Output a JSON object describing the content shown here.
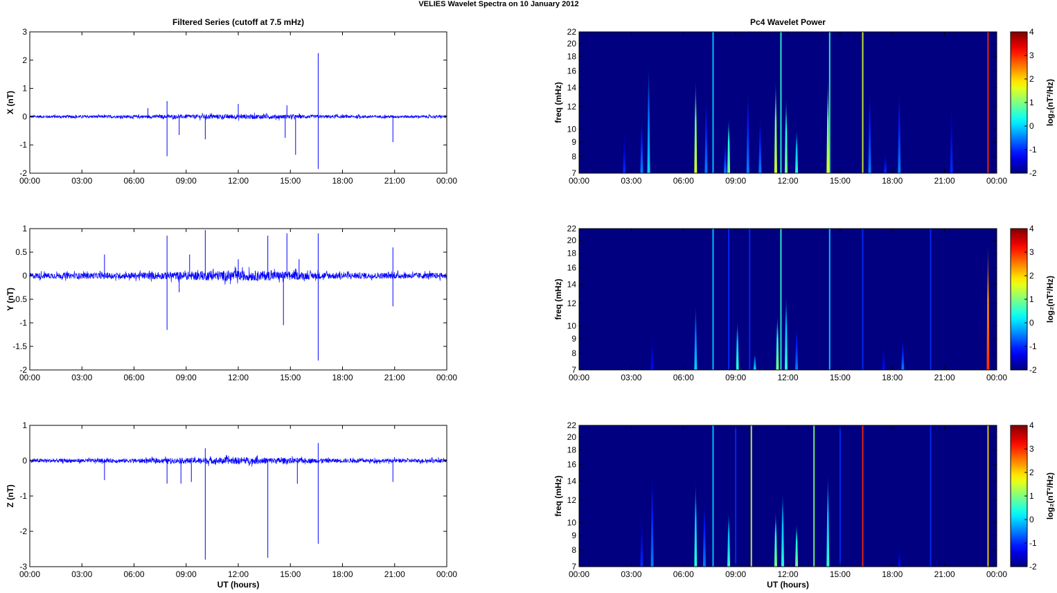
{
  "figure_title": "VELIES Wavelet Spectra on 10 January   2012",
  "chart_data": [
    {
      "type": "line",
      "panel": "timeseries-x",
      "title": "Filtered Series (cutoff at 7.5 mHz)",
      "ylabel": "X (nT)",
      "xlabel": "",
      "xlim": [
        0,
        24
      ],
      "ylim": [
        -2,
        3
      ],
      "yticks": [
        -2,
        -1,
        0,
        1,
        2,
        3
      ],
      "xtick_labels": [
        "00:00",
        "03:00",
        "06:00",
        "09:00",
        "12:00",
        "15:00",
        "18:00",
        "21:00",
        "00:00"
      ],
      "color": "#0000ff",
      "noise_amplitude": 0.07,
      "spikes": [
        [
          16.6,
          2.25
        ],
        [
          16.6,
          -1.85
        ],
        [
          7.9,
          -1.4
        ],
        [
          7.9,
          0.55
        ],
        [
          15.3,
          -1.35
        ],
        [
          14.7,
          -0.75
        ],
        [
          14.8,
          0.4
        ],
        [
          10.1,
          -0.8
        ],
        [
          8.6,
          -0.65
        ],
        [
          20.9,
          -0.9
        ],
        [
          24,
          1.15
        ],
        [
          24,
          -1.3
        ],
        [
          12,
          0.45
        ],
        [
          6.8,
          0.3
        ]
      ]
    },
    {
      "type": "line",
      "panel": "timeseries-y",
      "title": "",
      "ylabel": "Y (nT)",
      "xlabel": "",
      "xlim": [
        0,
        24
      ],
      "ylim": [
        -2,
        1
      ],
      "yticks": [
        -2,
        -1.5,
        -1,
        -0.5,
        0,
        0.5,
        1
      ],
      "xtick_labels": [
        "00:00",
        "03:00",
        "06:00",
        "09:00",
        "12:00",
        "15:00",
        "18:00",
        "21:00",
        "00:00"
      ],
      "color": "#0000ff",
      "noise_amplitude": 0.09,
      "spikes": [
        [
          16.6,
          -1.8
        ],
        [
          16.6,
          0.9
        ],
        [
          7.9,
          -1.15
        ],
        [
          7.9,
          0.85
        ],
        [
          14.8,
          0.9
        ],
        [
          14.6,
          -1.05
        ],
        [
          10.1,
          0.97
        ],
        [
          20.9,
          0.6
        ],
        [
          20.9,
          -0.65
        ],
        [
          4.3,
          0.45
        ],
        [
          13.7,
          0.85
        ],
        [
          24,
          0.8
        ],
        [
          24,
          -0.65
        ],
        [
          9.2,
          0.45
        ],
        [
          8.6,
          -0.35
        ],
        [
          12,
          0.35
        ],
        [
          15.5,
          0.35
        ]
      ]
    },
    {
      "type": "line",
      "panel": "timeseries-z",
      "title": "",
      "ylabel": "Z (nT)",
      "xlabel": "UT (hours)",
      "xlim": [
        0,
        24
      ],
      "ylim": [
        -3,
        1
      ],
      "yticks": [
        -3,
        -2,
        -1,
        0,
        1
      ],
      "xtick_labels": [
        "00:00",
        "03:00",
        "06:00",
        "09:00",
        "12:00",
        "15:00",
        "18:00",
        "21:00",
        "00:00"
      ],
      "color": "#0000ff",
      "noise_amplitude": 0.08,
      "spikes": [
        [
          10.1,
          -2.8
        ],
        [
          13.7,
          -2.75
        ],
        [
          16.6,
          -2.35
        ],
        [
          16.6,
          0.5
        ],
        [
          7.9,
          -0.65
        ],
        [
          8.7,
          -0.65
        ],
        [
          9.3,
          -0.6
        ],
        [
          4.3,
          -0.55
        ],
        [
          15.4,
          -0.65
        ],
        [
          20.9,
          -0.6
        ],
        [
          24,
          0.6
        ],
        [
          24,
          -0.75
        ],
        [
          10.1,
          0.35
        ]
      ]
    },
    {
      "type": "heatmap",
      "panel": "wavelet-x",
      "title": "Pc4 Wavelet Power",
      "ylabel": "freq (mHz)",
      "xlabel": "",
      "xlim": [
        0,
        24
      ],
      "ylim": [
        7,
        22
      ],
      "yscale": "log",
      "yticks": [
        7,
        8,
        9,
        10,
        12,
        14,
        16,
        18,
        20,
        22
      ],
      "xtick_labels": [
        "00:00",
        "03:00",
        "06:00",
        "09:00",
        "12:00",
        "15:00",
        "18:00",
        "21:00",
        "00:00"
      ],
      "colorbar": {
        "label": "log₂(nT²/Hz)",
        "range": [
          -2,
          4
        ],
        "ticks": [
          -2,
          -1,
          0,
          1,
          2,
          3,
          4
        ],
        "colormap": "jet"
      },
      "events_hour_topfreq_power": [
        [
          7.7,
          22,
          0
        ],
        [
          14.4,
          22,
          0.5
        ],
        [
          16.3,
          22,
          1.5
        ],
        [
          23.5,
          22,
          3
        ],
        [
          6.7,
          15,
          1.5
        ],
        [
          8.6,
          11,
          1
        ],
        [
          11.3,
          15,
          1.5
        ],
        [
          11.6,
          22,
          0.5
        ],
        [
          11.9,
          13,
          1
        ],
        [
          14.3,
          15,
          1.5
        ],
        [
          4.0,
          17,
          0
        ],
        [
          3.6,
          11,
          -0.5
        ],
        [
          7.3,
          13,
          -0.5
        ],
        [
          9.7,
          14,
          -0.5
        ],
        [
          10.4,
          11,
          -0.5
        ],
        [
          12.5,
          10,
          0.5
        ],
        [
          16.7,
          14,
          -0.5
        ],
        [
          18.4,
          14,
          -0.5
        ],
        [
          21.4,
          13,
          -1
        ],
        [
          17.6,
          8.5,
          -1
        ],
        [
          2.6,
          10,
          -1
        ],
        [
          8.4,
          9,
          -0.5
        ]
      ]
    },
    {
      "type": "heatmap",
      "panel": "wavelet-y",
      "title": "",
      "ylabel": "freq (mHz)",
      "xlabel": "",
      "xlim": [
        0,
        24
      ],
      "ylim": [
        7,
        22
      ],
      "yscale": "log",
      "yticks": [
        7,
        8,
        9,
        10,
        12,
        14,
        16,
        18,
        20,
        22
      ],
      "xtick_labels": [
        "00:00",
        "03:00",
        "06:00",
        "09:00",
        "12:00",
        "15:00",
        "18:00",
        "21:00",
        "00:00"
      ],
      "colorbar": {
        "label": "log₂(nT²/Hz)",
        "range": [
          -2,
          4
        ],
        "ticks": [
          -2,
          -1,
          0,
          1,
          2,
          3,
          4
        ],
        "colormap": "jet"
      },
      "events_hour_topfreq_power": [
        [
          7.7,
          22,
          0
        ],
        [
          11.6,
          22,
          0.5
        ],
        [
          14.4,
          22,
          0
        ],
        [
          16.3,
          22,
          -1
        ],
        [
          20.2,
          22,
          -1
        ],
        [
          23.5,
          20,
          3
        ],
        [
          8.6,
          22,
          -1
        ],
        [
          6.7,
          12,
          0
        ],
        [
          9.1,
          10.5,
          0.5
        ],
        [
          11.4,
          11,
          1
        ],
        [
          11.9,
          13,
          0.5
        ],
        [
          10.1,
          8,
          0
        ],
        [
          18.6,
          9,
          -0.5
        ],
        [
          12.5,
          10,
          -0.5
        ],
        [
          9.8,
          22,
          -1
        ],
        [
          4.2,
          10,
          -1.2
        ],
        [
          17.5,
          9,
          -1.2
        ]
      ]
    },
    {
      "type": "heatmap",
      "panel": "wavelet-z",
      "title": "",
      "ylabel": "freq (mHz)",
      "xlabel": "UT (hours)",
      "xlim": [
        0,
        24
      ],
      "ylim": [
        7,
        22
      ],
      "yscale": "log",
      "yticks": [
        7,
        8,
        9,
        10,
        12,
        14,
        16,
        18,
        20,
        22
      ],
      "xtick_labels": [
        "00:00",
        "03:00",
        "06:00",
        "09:00",
        "12:00",
        "15:00",
        "18:00",
        "21:00",
        "00:00"
      ],
      "colorbar": {
        "label": "log₂(nT²/Hz)",
        "range": [
          -2,
          4
        ],
        "ticks": [
          -2,
          -1,
          0,
          1,
          2,
          3,
          4
        ],
        "colormap": "jet"
      },
      "events_hour_topfreq_power": [
        [
          7.7,
          22,
          0
        ],
        [
          9.9,
          22,
          1.5
        ],
        [
          13.5,
          22,
          1
        ],
        [
          16.3,
          22,
          3
        ],
        [
          23.5,
          22,
          2
        ],
        [
          6.7,
          14,
          0.5
        ],
        [
          8.6,
          11,
          0.5
        ],
        [
          11.3,
          11,
          1
        ],
        [
          11.7,
          13,
          0.5
        ],
        [
          12.5,
          10,
          1
        ],
        [
          14.3,
          15,
          0.5
        ],
        [
          4.2,
          15,
          -0.5
        ],
        [
          3.6,
          11,
          -1
        ],
        [
          9.0,
          22,
          -1
        ],
        [
          15.0,
          22,
          -1
        ],
        [
          20.2,
          22,
          -1
        ],
        [
          7.2,
          12,
          -0.5
        ],
        [
          18.4,
          8.5,
          -1.2
        ]
      ]
    }
  ]
}
